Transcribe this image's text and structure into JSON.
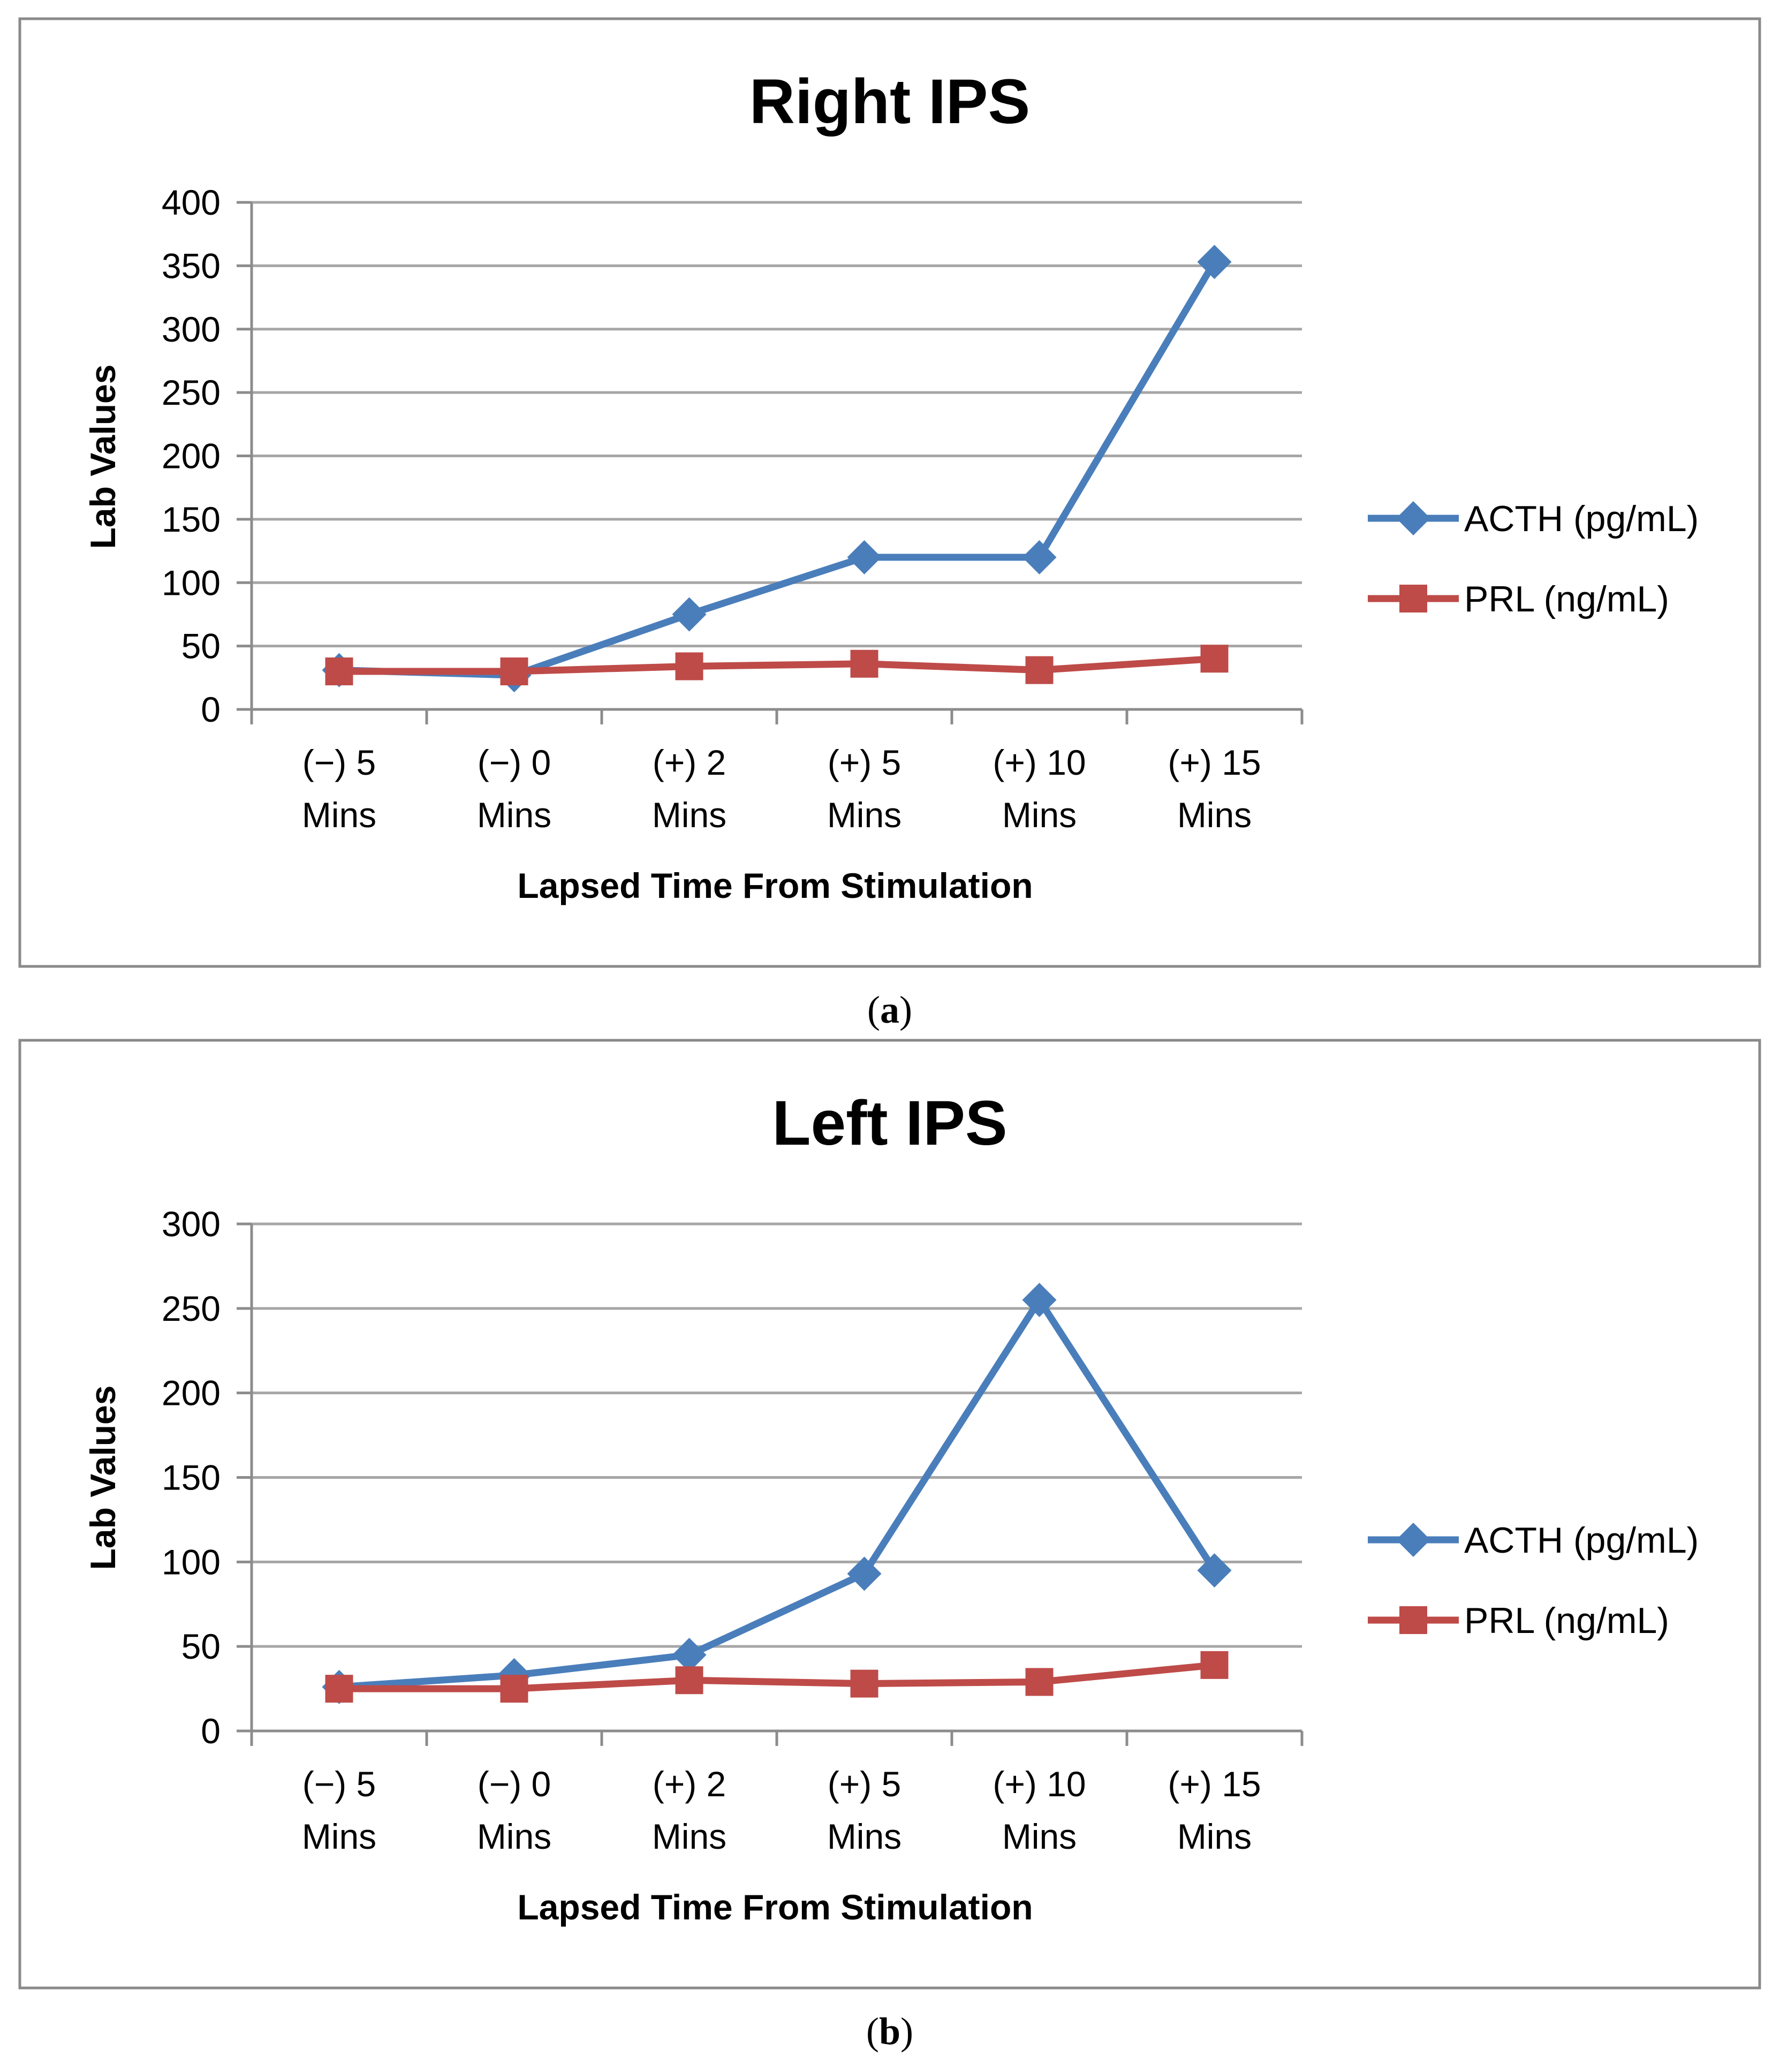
{
  "chart_data": [
    {
      "panel": "a",
      "type": "line",
      "title": "Right IPS",
      "xlabel": "Lapsed Time From Stimulation",
      "ylabel": "Lab Values",
      "categories": [
        [
          "(−) 5",
          "Mins"
        ],
        [
          "(−) 0",
          "Mins"
        ],
        [
          "(+) 2",
          "Mins"
        ],
        [
          "(+) 5",
          "Mins"
        ],
        [
          "(+) 10",
          "Mins"
        ],
        [
          "(+) 15",
          "Mins"
        ]
      ],
      "ylim": [
        0,
        400
      ],
      "yticks": [
        0,
        50,
        100,
        150,
        200,
        250,
        300,
        350,
        400
      ],
      "grid": true,
      "legend_position": "right",
      "series": [
        {
          "name": "ACTH (pg/mL)",
          "color": "#4a7ebb",
          "marker": "diamond",
          "values": [
            31,
            27,
            75,
            120,
            120,
            353
          ]
        },
        {
          "name": "PRL (ng/mL)",
          "color": "#be4b48",
          "marker": "square",
          "values": [
            30,
            30,
            34,
            36,
            31,
            40
          ]
        }
      ],
      "caption": {
        "open": "(",
        "letter": "a",
        "close": ")"
      }
    },
    {
      "panel": "b",
      "type": "line",
      "title": "Left IPS",
      "xlabel": "Lapsed Time From Stimulation",
      "ylabel": "Lab Values",
      "categories": [
        [
          "(−) 5",
          "Mins"
        ],
        [
          "(−) 0",
          "Mins"
        ],
        [
          "(+) 2",
          "Mins"
        ],
        [
          "(+) 5",
          "Mins"
        ],
        [
          "(+) 10",
          "Mins"
        ],
        [
          "(+) 15",
          "Mins"
        ]
      ],
      "ylim": [
        0,
        300
      ],
      "yticks": [
        0,
        50,
        100,
        150,
        200,
        250,
        300
      ],
      "grid": true,
      "legend_position": "right",
      "series": [
        {
          "name": "ACTH (pg/mL)",
          "color": "#4a7ebb",
          "marker": "diamond",
          "values": [
            26,
            33,
            45,
            93,
            255,
            95
          ]
        },
        {
          "name": "PRL (ng/mL)",
          "color": "#be4b48",
          "marker": "square",
          "values": [
            25,
            25,
            30,
            28,
            29,
            39
          ]
        }
      ],
      "caption": {
        "open": "(",
        "letter": "b",
        "close": ")"
      }
    }
  ]
}
